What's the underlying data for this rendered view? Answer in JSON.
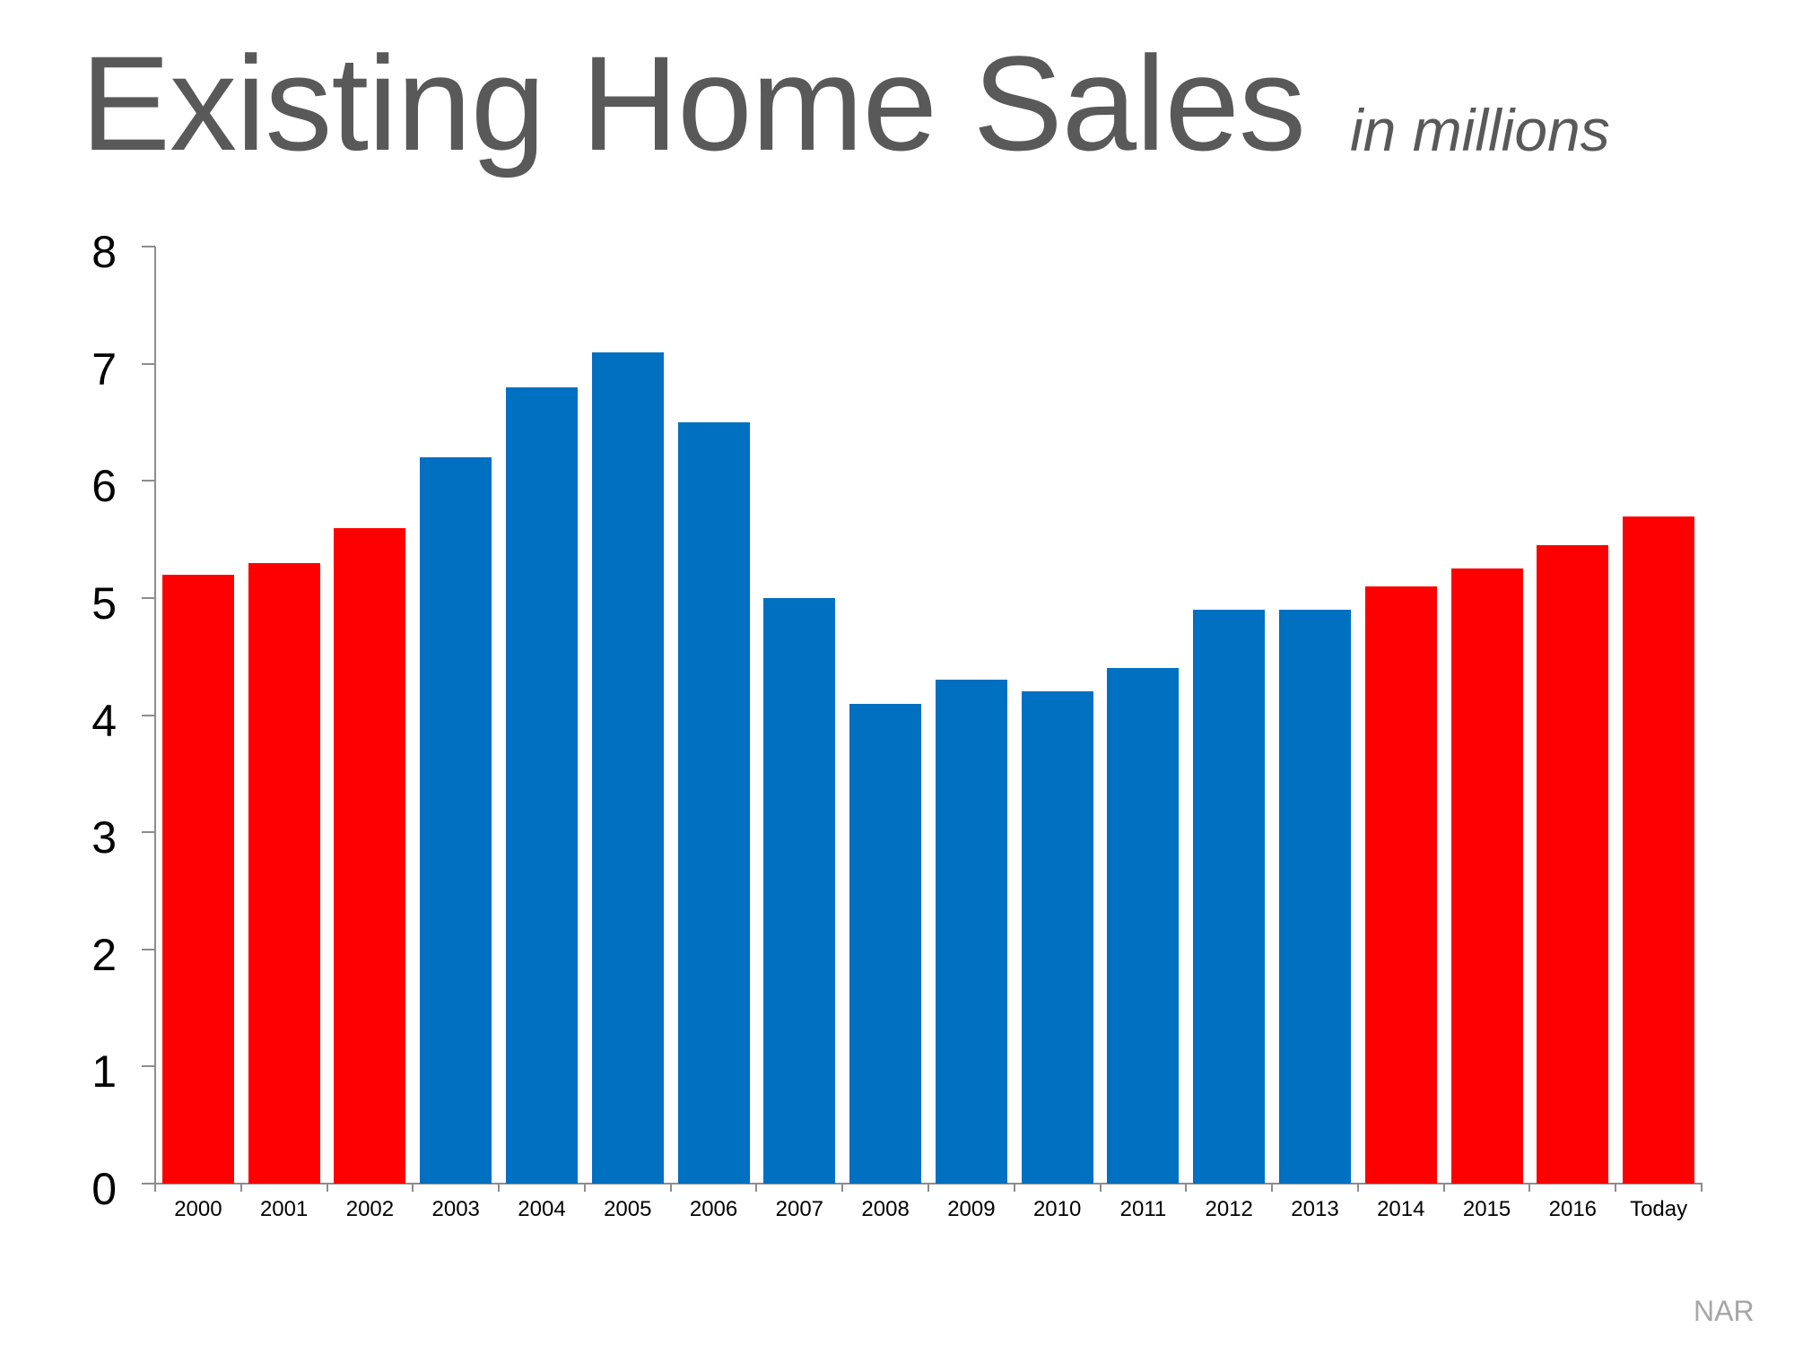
{
  "title": "Existing Home Sales",
  "subtitle": "in millions",
  "source": "NAR",
  "colors": {
    "red": "#FF0000",
    "blue": "#0070C0",
    "title": "#595959",
    "axis": "#8C8C8C",
    "source": "#A6A6A6"
  },
  "chart_data": {
    "type": "bar",
    "title": "Existing Home Sales",
    "subtitle": "in millions",
    "xlabel": "",
    "ylabel": "",
    "ylim": [
      0,
      8
    ],
    "yticks": [
      0,
      1,
      2,
      3,
      4,
      5,
      6,
      7,
      8
    ],
    "grid": false,
    "legend": null,
    "source": "NAR",
    "categories": [
      "2000",
      "2001",
      "2002",
      "2003",
      "2004",
      "2005",
      "2006",
      "2007",
      "2008",
      "2009",
      "2010",
      "2011",
      "2012",
      "2013",
      "2014",
      "2015",
      "2016",
      "Today"
    ],
    "values": [
      5.2,
      5.3,
      5.6,
      6.2,
      6.8,
      7.1,
      6.5,
      5.0,
      4.1,
      4.3,
      4.2,
      4.4,
      4.9,
      4.9,
      5.1,
      5.25,
      5.45,
      5.7
    ],
    "bar_colors": [
      "red",
      "red",
      "red",
      "blue",
      "blue",
      "blue",
      "blue",
      "blue",
      "blue",
      "blue",
      "blue",
      "blue",
      "blue",
      "blue",
      "red",
      "red",
      "red",
      "red"
    ]
  }
}
